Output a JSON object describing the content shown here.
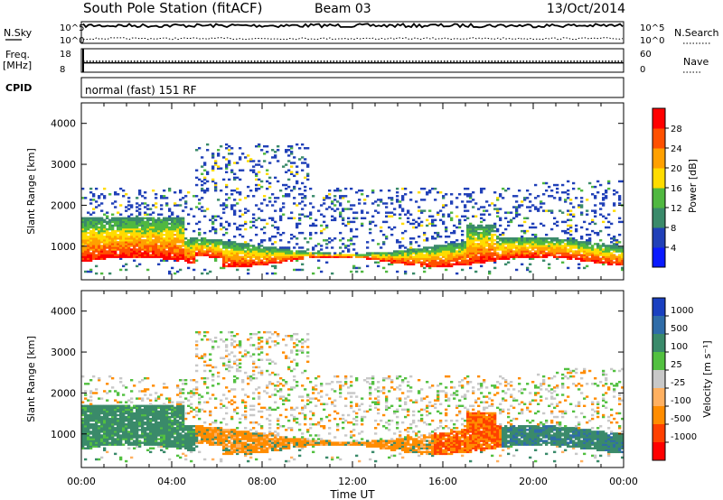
{
  "header": {
    "title": "South Pole Station (fitACF)",
    "beam": "Beam 03",
    "date": "13/Oct/2014"
  },
  "chart_data": [
    {
      "type": "line",
      "panel": "noise",
      "left_label": "N.Sky",
      "right_label": "N.Search",
      "left_ticks": [
        "10^5",
        "10^0"
      ],
      "right_ticks": [
        "10^5",
        "10^0"
      ],
      "series": [
        {
          "name": "N.Sky",
          "style": "solid",
          "level": 0.82
        },
        {
          "name": "N.Search",
          "style": "dotted",
          "level": 0.22
        }
      ]
    },
    {
      "type": "line",
      "panel": "frequency",
      "left_label": "Freq.",
      "left_unit": "[MHz]",
      "right_label": "Nave",
      "left_ticks": [
        18,
        8
      ],
      "right_ticks": [
        60,
        0
      ],
      "series": [
        {
          "name": "Freq.",
          "style": "solid",
          "value": 12
        },
        {
          "name": "Nave",
          "style": "dotted",
          "value": 28
        }
      ]
    },
    {
      "type": "text",
      "panel": "cpid",
      "label": "CPID",
      "value": "normal (fast) 151 RF"
    },
    {
      "type": "heatmap",
      "panel": "power",
      "ylabel": "Slant Range [km]",
      "ylim": [
        180,
        4500
      ],
      "y_ticks": [
        1000,
        2000,
        3000,
        4000
      ],
      "xlim": [
        0,
        24
      ],
      "colorbar": {
        "label": "Power [dB]",
        "ticks": [
          4,
          8,
          12,
          16,
          20,
          24,
          28
        ],
        "colors": [
          "#0a1aff",
          "#2040b8",
          "#3a8a6a",
          "#50b840",
          "#ffdc00",
          "#ffa000",
          "#ff5000",
          "#ff0000"
        ]
      }
    },
    {
      "type": "heatmap",
      "panel": "velocity",
      "ylabel": "Slant Range [km]",
      "ylim": [
        180,
        4500
      ],
      "y_ticks": [
        1000,
        2000,
        3000,
        4000
      ],
      "xlim": [
        0,
        24
      ],
      "xlabel": "Time UT",
      "x_ticks": [
        "00:00",
        "04:00",
        "08:00",
        "12:00",
        "16:00",
        "20:00",
        "00:00"
      ],
      "colorbar": {
        "label": "Velocity [m s⁻¹]",
        "ticks": [
          "1000",
          "500",
          "100",
          "25",
          "-25",
          "-100",
          "-500",
          "-1000"
        ],
        "colors": [
          "#1a40c0",
          "#2f6ca8",
          "#3a8a6a",
          "#52c040",
          "#c8c8c8",
          "#ffb060",
          "#ff8c00",
          "#ff4000",
          "#ff0000"
        ]
      }
    }
  ]
}
